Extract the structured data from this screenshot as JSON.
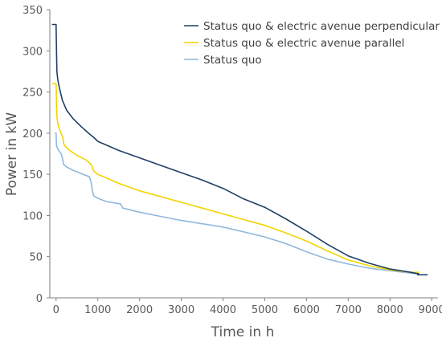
{
  "chart_data": {
    "type": "line",
    "xlabel": "Time in h",
    "ylabel": "Power in kW",
    "xlim": [
      -150,
      9150
    ],
    "ylim": [
      0,
      350
    ],
    "xticks": [
      0,
      1000,
      2000,
      3000,
      4000,
      5000,
      6000,
      7000,
      8000,
      9000
    ],
    "yticks": [
      0,
      50,
      100,
      150,
      200,
      250,
      300,
      350
    ],
    "xtick_labels": [
      "0",
      "1000",
      "2000",
      "3000",
      "4000",
      "5000",
      "6000",
      "7000",
      "8000",
      "9000"
    ],
    "ytick_labels": [
      "0",
      "50",
      "100",
      "150",
      "200",
      "250",
      "300",
      "350"
    ],
    "grid": false,
    "legend_position": "top-right",
    "series": [
      {
        "name": "Status quo & electric avenue perpendicular",
        "color": "#1f3f66",
        "points": [
          [
            -100,
            332
          ],
          [
            -30,
            332
          ],
          [
            0,
            332
          ],
          [
            10,
            300
          ],
          [
            20,
            275
          ],
          [
            40,
            265
          ],
          [
            80,
            255
          ],
          [
            150,
            240
          ],
          [
            250,
            228
          ],
          [
            400,
            218
          ],
          [
            600,
            208
          ],
          [
            800,
            199
          ],
          [
            900,
            195
          ],
          [
            1000,
            190
          ],
          [
            1500,
            179
          ],
          [
            2000,
            170
          ],
          [
            2500,
            161
          ],
          [
            3000,
            152
          ],
          [
            3500,
            143
          ],
          [
            4000,
            133
          ],
          [
            4500,
            120
          ],
          [
            5000,
            110
          ],
          [
            5500,
            96
          ],
          [
            6000,
            81
          ],
          [
            6500,
            65
          ],
          [
            7000,
            51
          ],
          [
            7500,
            42
          ],
          [
            8000,
            35
          ],
          [
            8500,
            31
          ],
          [
            8700,
            29
          ]
        ],
        "endcap": [
          [
            8650,
            28
          ],
          [
            8900,
            28
          ]
        ]
      },
      {
        "name": "Status quo & electric avenue parallel",
        "color": "#f2d400",
        "points": [
          [
            -100,
            260
          ],
          [
            0,
            260
          ],
          [
            10,
            235
          ],
          [
            20,
            220
          ],
          [
            40,
            212
          ],
          [
            80,
            205
          ],
          [
            120,
            200
          ],
          [
            160,
            195
          ],
          [
            180,
            188
          ],
          [
            200,
            185
          ],
          [
            300,
            180
          ],
          [
            500,
            173
          ],
          [
            700,
            168
          ],
          [
            820,
            163
          ],
          [
            860,
            160
          ],
          [
            900,
            154
          ],
          [
            1000,
            150
          ],
          [
            1500,
            139
          ],
          [
            2000,
            130
          ],
          [
            2500,
            123
          ],
          [
            3000,
            116
          ],
          [
            3500,
            109
          ],
          [
            4000,
            102
          ],
          [
            4500,
            95
          ],
          [
            5000,
            88
          ],
          [
            5500,
            79
          ],
          [
            6000,
            69
          ],
          [
            6500,
            57
          ],
          [
            7000,
            46
          ],
          [
            7500,
            39
          ],
          [
            8000,
            34
          ],
          [
            8500,
            31
          ],
          [
            8700,
            31
          ]
        ]
      },
      {
        "name": "Status quo",
        "color": "#8fb8dc",
        "points": [
          [
            -30,
            200
          ],
          [
            0,
            200
          ],
          [
            10,
            185
          ],
          [
            30,
            182
          ],
          [
            80,
            178
          ],
          [
            120,
            175
          ],
          [
            150,
            170
          ],
          [
            180,
            162
          ],
          [
            250,
            159
          ],
          [
            400,
            155
          ],
          [
            600,
            151
          ],
          [
            800,
            147
          ],
          [
            840,
            140
          ],
          [
            870,
            130
          ],
          [
            900,
            124
          ],
          [
            1000,
            121
          ],
          [
            1200,
            117
          ],
          [
            1550,
            114
          ],
          [
            1600,
            109
          ],
          [
            2000,
            104
          ],
          [
            2500,
            99
          ],
          [
            3000,
            94
          ],
          [
            3500,
            90
          ],
          [
            4000,
            86
          ],
          [
            4500,
            80
          ],
          [
            5000,
            74
          ],
          [
            5500,
            66
          ],
          [
            6000,
            56
          ],
          [
            6500,
            47
          ],
          [
            7000,
            41
          ],
          [
            7500,
            36
          ],
          [
            8000,
            33
          ],
          [
            8500,
            30
          ],
          [
            8700,
            29
          ]
        ]
      }
    ]
  }
}
